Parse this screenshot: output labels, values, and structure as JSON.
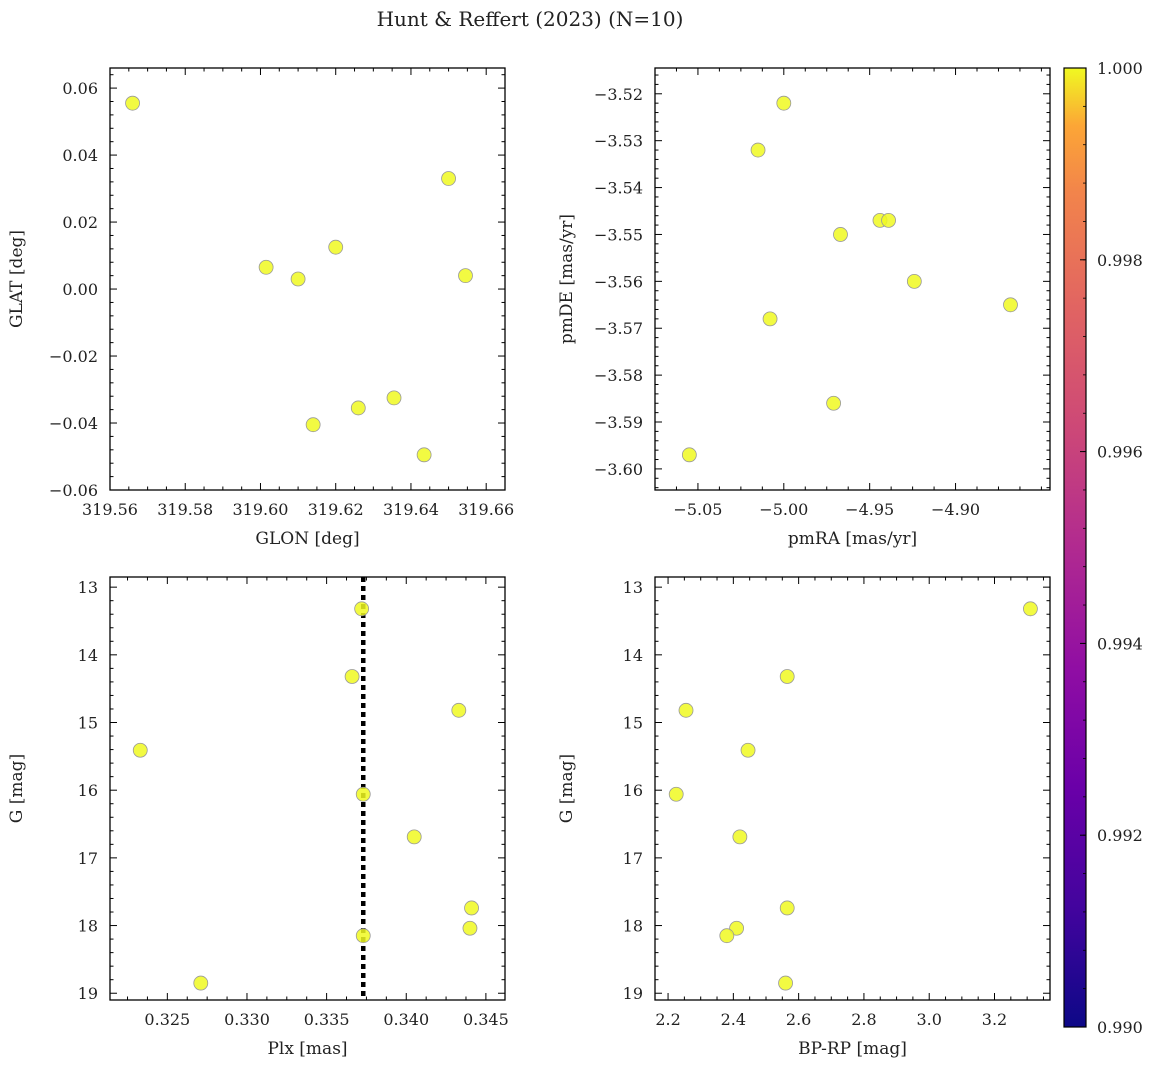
{
  "figure": {
    "title": "Hunt & Reffert (2023) (N=10)"
  },
  "colorbar": {
    "min": 0.99,
    "max": 1.0,
    "colormap": "plasma",
    "ticks": [
      "0.990",
      "0.992",
      "0.994",
      "0.996",
      "0.998",
      "1.000"
    ]
  },
  "colors": {
    "point_fill": "#f0f921",
    "point_edge": "#999999",
    "axis": "#000000",
    "ref_line": "#000000"
  },
  "chart_data": [
    {
      "id": "glon-glat",
      "type": "scatter",
      "title": "",
      "xlabel": "GLON [deg]",
      "ylabel": "GLAT [deg]",
      "xlim": [
        319.56,
        319.665
      ],
      "ylim": [
        -0.06,
        0.066
      ],
      "y_inverted": false,
      "xticks": [
        "319.56",
        "319.58",
        "319.60",
        "319.62",
        "319.64",
        "319.66"
      ],
      "yticks": [
        "0.06",
        "0.04",
        "0.02",
        "0.00",
        "−0.02",
        "−0.04",
        "−0.06"
      ],
      "x": [
        319.566,
        319.65,
        319.62,
        319.6015,
        319.61,
        319.6545,
        319.626,
        319.6355,
        319.614,
        319.6435
      ],
      "y": [
        0.0555,
        0.033,
        0.0125,
        0.0065,
        0.003,
        0.004,
        -0.0355,
        -0.0325,
        -0.0405,
        -0.0495
      ],
      "color_values": [
        1,
        1,
        1,
        1,
        1,
        1,
        1,
        1,
        1,
        1
      ]
    },
    {
      "id": "pmra-pmde",
      "type": "scatter",
      "title": "",
      "xlabel": "pmRA [mas/yr]",
      "ylabel": "pmDE [mas/yr]",
      "xlim": [
        -5.075,
        -4.845
      ],
      "ylim": [
        -3.6045,
        -3.5145
      ],
      "y_inverted": false,
      "xticks": [
        "−5.05",
        "−5.00",
        "−4.95",
        "−4.90"
      ],
      "yticks": [
        "−3.52",
        "−3.53",
        "−3.54",
        "−3.55",
        "−3.56",
        "−3.57",
        "−3.58",
        "−3.59",
        "−3.60"
      ],
      "x": [
        -5.0,
        -5.015,
        -4.944,
        -4.939,
        -4.967,
        -4.924,
        -4.868,
        -5.008,
        -4.971,
        -5.055
      ],
      "y": [
        -3.522,
        -3.532,
        -3.547,
        -3.547,
        -3.55,
        -3.56,
        -3.565,
        -3.568,
        -3.586,
        -3.597
      ],
      "color_values": [
        1,
        1,
        1,
        1,
        1,
        1,
        1,
        1,
        1,
        1
      ]
    },
    {
      "id": "plx-g",
      "type": "scatter",
      "title": "",
      "xlabel": "Plx [mas]",
      "ylabel": "G [mag]",
      "xlim": [
        0.3214,
        0.3462
      ],
      "ylim": [
        12.85,
        19.1
      ],
      "y_inverted": true,
      "xticks": [
        "0.325",
        "0.330",
        "0.335",
        "0.340",
        "0.345"
      ],
      "yticks": [
        "13",
        "14",
        "15",
        "16",
        "17",
        "18",
        "19"
      ],
      "x": [
        0.3372,
        0.3366,
        0.3433,
        0.3233,
        0.3373,
        0.3405,
        0.3441,
        0.344,
        0.3373,
        0.3271
      ],
      "y": [
        13.32,
        14.32,
        14.82,
        15.41,
        16.06,
        16.69,
        17.74,
        18.04,
        18.15,
        18.85
      ],
      "color_values": [
        1,
        1,
        1,
        1,
        1,
        1,
        1,
        1,
        1,
        1
      ],
      "vline": 0.3373
    },
    {
      "id": "bprp-g",
      "type": "scatter",
      "title": "",
      "xlabel": "BP-RP [mag]",
      "ylabel": "G [mag]",
      "xlim": [
        2.16,
        3.37
      ],
      "ylim": [
        12.85,
        19.1
      ],
      "y_inverted": true,
      "xticks": [
        "2.2",
        "2.4",
        "2.6",
        "2.8",
        "3.0",
        "3.2"
      ],
      "yticks": [
        "13",
        "14",
        "15",
        "16",
        "17",
        "18",
        "19"
      ],
      "x": [
        3.31,
        2.565,
        2.255,
        2.445,
        2.225,
        2.42,
        2.565,
        2.41,
        2.38,
        2.56
      ],
      "y": [
        13.32,
        14.32,
        14.82,
        15.41,
        16.06,
        16.69,
        17.74,
        18.04,
        18.15,
        18.85
      ],
      "color_values": [
        1,
        1,
        1,
        1,
        1,
        1,
        1,
        1,
        1,
        1
      ]
    }
  ]
}
